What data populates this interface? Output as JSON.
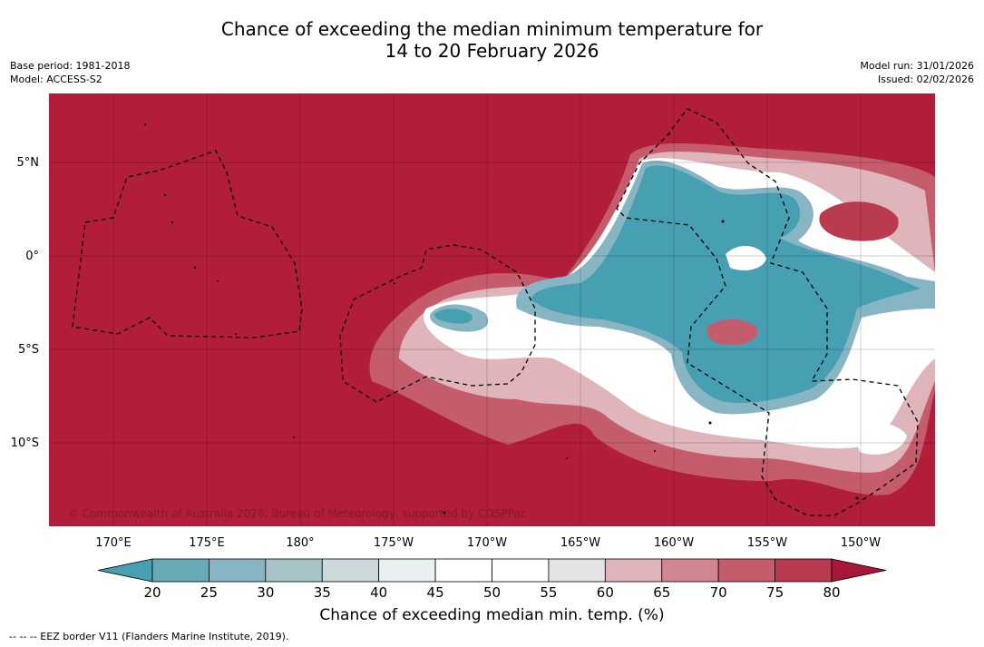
{
  "title": {
    "line1": "Chance of exceeding the median minimum temperature for",
    "line2": "14 to 20 February 2026"
  },
  "meta": {
    "base_period": "Base period: 1981-2018",
    "model": "Model: ACCESS-S2",
    "model_run": "Model run: 31/01/2026",
    "issued": "Issued: 02/02/2026"
  },
  "map": {
    "copyright": "© Commonwealth of Australia 2026, Bureau of Meteorology, supported by COSPPac",
    "lat_labels": [
      "5°N",
      "0°",
      "5°S",
      "10°S"
    ],
    "lon_labels": [
      "170°E",
      "175°E",
      "180°",
      "175°W",
      "170°W",
      "165°W",
      "160°W",
      "155°W",
      "150°W"
    ],
    "ocean_color": "#b21d3a"
  },
  "colorbar": {
    "ticks": [
      "20",
      "25",
      "30",
      "35",
      "40",
      "45",
      "50",
      "55",
      "60",
      "65",
      "70",
      "75",
      "80"
    ],
    "colors": [
      "#46a0b2",
      "#68a9b6",
      "#88b5c3",
      "#a8c4c9",
      "#ccd8da",
      "#eaeff1",
      "#ffffff",
      "#ffffff",
      "#e6e3e5",
      "#dfb4bb",
      "#d08690",
      "#c45c6c",
      "#b83b50",
      "#a8163a"
    ],
    "label": "Chance of exceeding median min. temp. (%)"
  },
  "footer": "--  --  -- EEZ border V11 (Flanders Marine Institute, 2019)."
}
